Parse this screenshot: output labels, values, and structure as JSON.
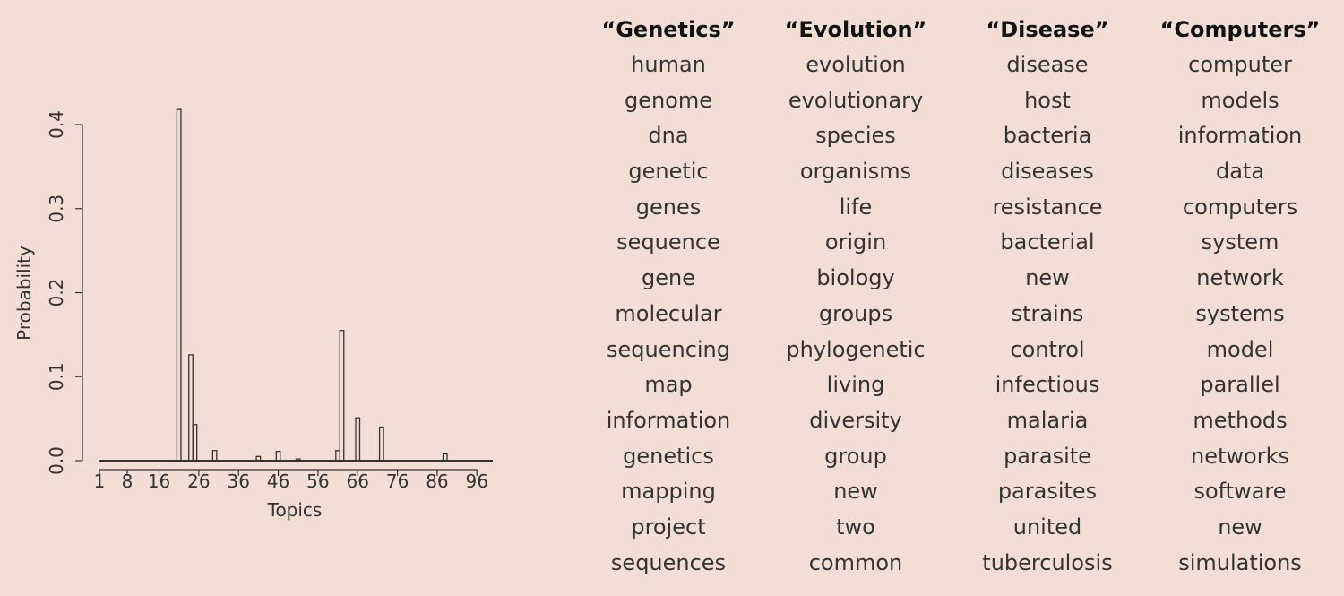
{
  "chart_data": {
    "type": "bar",
    "xlabel": "Topics",
    "ylabel": "Probability",
    "x_ticks": [
      "1",
      "8",
      "16",
      "26",
      "36",
      "46",
      "56",
      "66",
      "76",
      "86",
      "96"
    ],
    "y_ticks": [
      "0.0",
      "0.1",
      "0.2",
      "0.3",
      "0.4"
    ],
    "xlim": [
      1,
      100
    ],
    "ylim": [
      0,
      0.42
    ],
    "grid": false,
    "bars": [
      {
        "topic": 21,
        "value": 0.418
      },
      {
        "topic": 24,
        "value": 0.126
      },
      {
        "topic": 25,
        "value": 0.043
      },
      {
        "topic": 30,
        "value": 0.012
      },
      {
        "topic": 41,
        "value": 0.005
      },
      {
        "topic": 46,
        "value": 0.011
      },
      {
        "topic": 51,
        "value": 0.002
      },
      {
        "topic": 61,
        "value": 0.012
      },
      {
        "topic": 62,
        "value": 0.155
      },
      {
        "topic": 66,
        "value": 0.051
      },
      {
        "topic": 72,
        "value": 0.04
      },
      {
        "topic": 88,
        "value": 0.008
      }
    ]
  },
  "topics": [
    {
      "header": "“Genetics”",
      "words": [
        "human",
        "genome",
        "dna",
        "genetic",
        "genes",
        "sequence",
        "gene",
        "molecular",
        "sequencing",
        "map",
        "information",
        "genetics",
        "mapping",
        "project",
        "sequences"
      ]
    },
    {
      "header": "“Evolution”",
      "words": [
        "evolution",
        "evolutionary",
        "species",
        "organisms",
        "life",
        "origin",
        "biology",
        "groups",
        "phylogenetic",
        "living",
        "diversity",
        "group",
        "new",
        "two",
        "common"
      ]
    },
    {
      "header": "“Disease”",
      "words": [
        "disease",
        "host",
        "bacteria",
        "diseases",
        "resistance",
        "bacterial",
        "new",
        "strains",
        "control",
        "infectious",
        "malaria",
        "parasite",
        "parasites",
        "united",
        "tuberculosis"
      ]
    },
    {
      "header": "“Computers”",
      "words": [
        "computer",
        "models",
        "information",
        "data",
        "computers",
        "system",
        "network",
        "systems",
        "model",
        "parallel",
        "methods",
        "networks",
        "software",
        "new",
        "simulations"
      ]
    }
  ]
}
